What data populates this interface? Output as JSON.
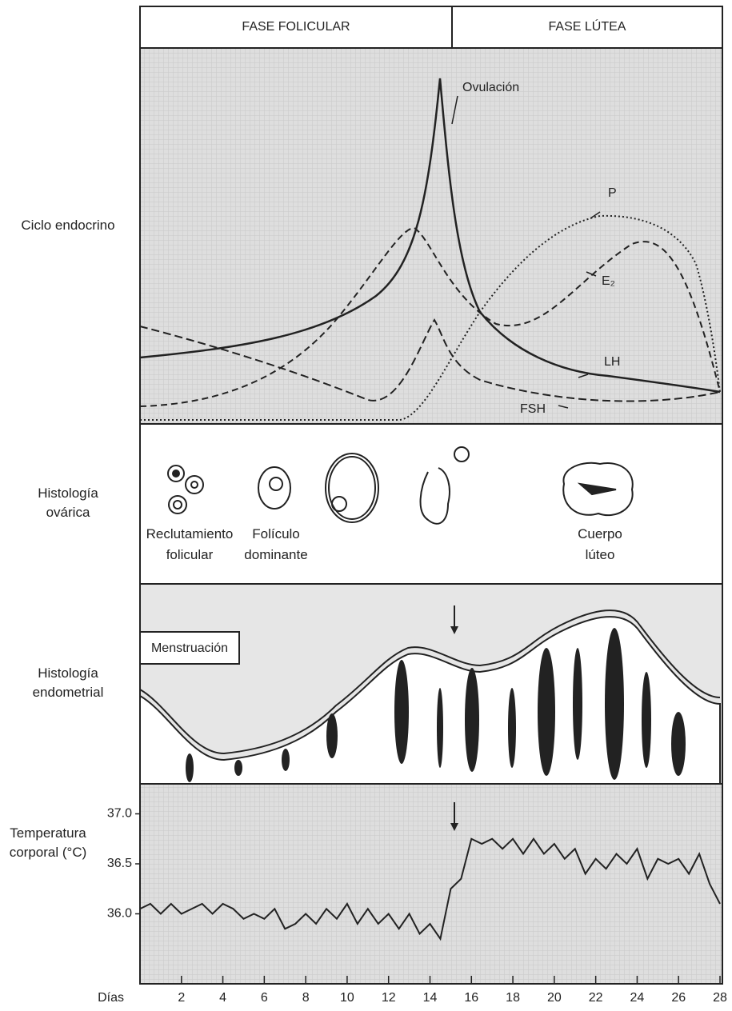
{
  "phases": [
    "FASE FOLICULAR",
    "FASE LÚTEA"
  ],
  "rows": [
    "Ciclo endocrino",
    "Histología ovárica",
    "Histología endometrial",
    "Temperatura corporal (°C)"
  ],
  "hormones": {
    "ovulation": "Ovulación",
    "labels": [
      "P",
      "E₂",
      "LH",
      "FSH"
    ]
  },
  "ovary": [
    "Reclutamiento folicular",
    "Folículo dominante",
    "Cuerpo lúteo"
  ],
  "endometrium": {
    "label": "Menstruación"
  },
  "chart_data": {
    "type": "line",
    "xlabel": "Días",
    "x": [
      0,
      0.5,
      1,
      1.5,
      2,
      2.5,
      3,
      3.5,
      4,
      4.5,
      5,
      5.5,
      6,
      6.5,
      7,
      7.5,
      8,
      8.5,
      9,
      9.5,
      10,
      10.5,
      11,
      11.5,
      12,
      12.5,
      13,
      13.5,
      14,
      14.5,
      15,
      15.5,
      16,
      16.5,
      17,
      17.5,
      18,
      18.5,
      19,
      19.5,
      20,
      20.5,
      21,
      21.5,
      22,
      22.5,
      23,
      23.5,
      24,
      24.5,
      25,
      25.5,
      26,
      26.5,
      27,
      27.5,
      28
    ],
    "values": [
      36.05,
      36.1,
      36.0,
      36.1,
      36.0,
      36.05,
      36.1,
      36.0,
      36.1,
      36.05,
      35.95,
      36.0,
      35.95,
      36.05,
      35.85,
      35.9,
      36.0,
      35.9,
      36.05,
      35.95,
      36.1,
      35.9,
      36.05,
      35.9,
      36.0,
      35.85,
      36.0,
      35.8,
      35.9,
      35.75,
      36.25,
      36.35,
      36.75,
      36.7,
      36.75,
      36.65,
      36.75,
      36.6,
      36.75,
      36.6,
      36.7,
      36.55,
      36.65,
      36.4,
      36.55,
      36.45,
      36.6,
      36.5,
      36.65,
      36.35,
      36.55,
      36.5,
      36.55,
      36.4,
      36.6,
      36.3,
      36.1
    ],
    "color": "#222222",
    "xlim": [
      0,
      28
    ],
    "xticks": [
      2,
      4,
      6,
      8,
      10,
      12,
      14,
      16,
      18,
      20,
      22,
      24,
      26,
      28
    ],
    "ylim": [
      35.3,
      37.3
    ],
    "yticks": [
      {
        "value": 36,
        "label": "36.0"
      },
      36.5,
      {
        "value": 37,
        "label": "37.0"
      }
    ]
  }
}
